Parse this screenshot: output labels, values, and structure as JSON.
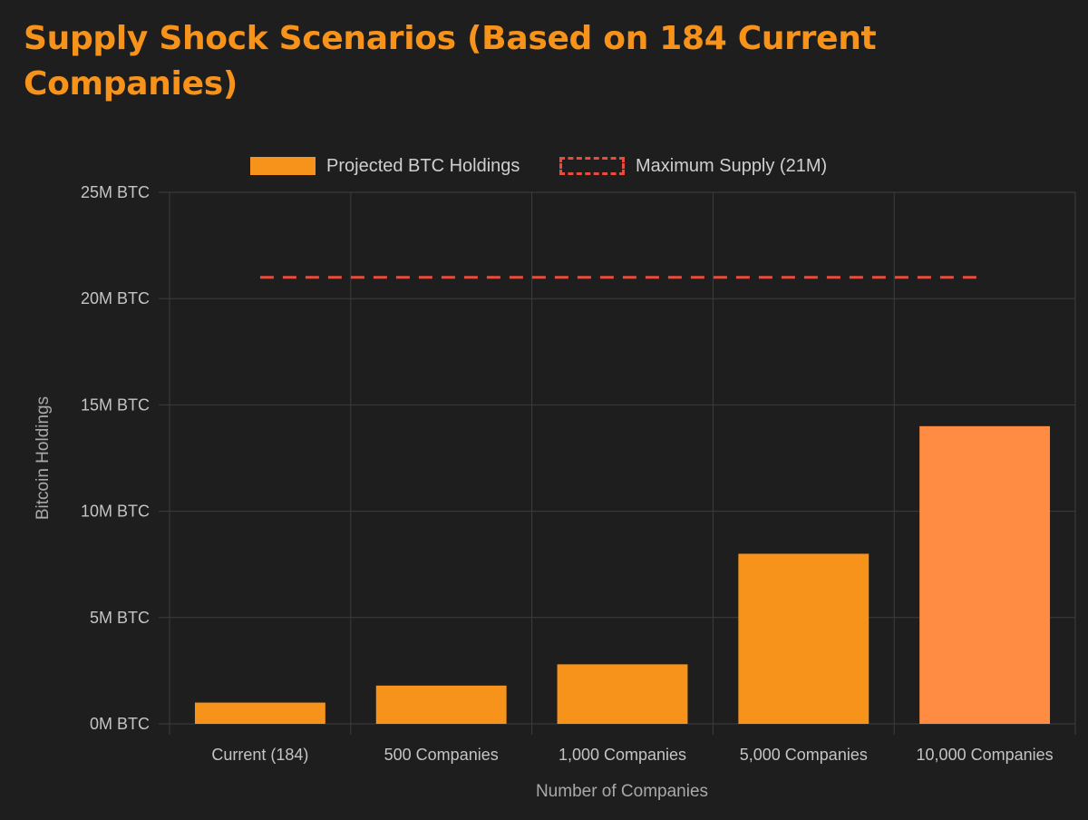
{
  "chart_data": {
    "type": "bar",
    "title": "Supply Shock Scenarios (Based on 184 Current Companies)",
    "xlabel": "Number of Companies",
    "ylabel": "Bitcoin Holdings",
    "categories": [
      "Current (184)",
      "500 Companies",
      "1,000 Companies",
      "5,000 Companies",
      "10,000 Companies"
    ],
    "series": [
      {
        "name": "Projected BTC Holdings",
        "values": [
          1000000,
          1800000,
          2800000,
          8000000,
          14000000
        ],
        "colors": [
          "#f7931a",
          "#f7931a",
          "#f7931a",
          "#f7931a",
          "#ff8c42"
        ]
      }
    ],
    "reference_line": {
      "name": "Maximum Supply (21M)",
      "value": 21000000,
      "color": "#e74c3c",
      "style": "dashed"
    },
    "ylim": [
      0,
      25000000
    ],
    "yticks": [
      0,
      5000000,
      10000000,
      15000000,
      20000000,
      25000000
    ],
    "ytick_labels": [
      "0M BTC",
      "5M BTC",
      "10M BTC",
      "15M BTC",
      "20M BTC",
      "25M BTC"
    ],
    "grid": true,
    "legend_position": "top-center"
  },
  "legend": {
    "bar_label": "Projected BTC Holdings",
    "line_label": "Maximum Supply (21M)"
  }
}
